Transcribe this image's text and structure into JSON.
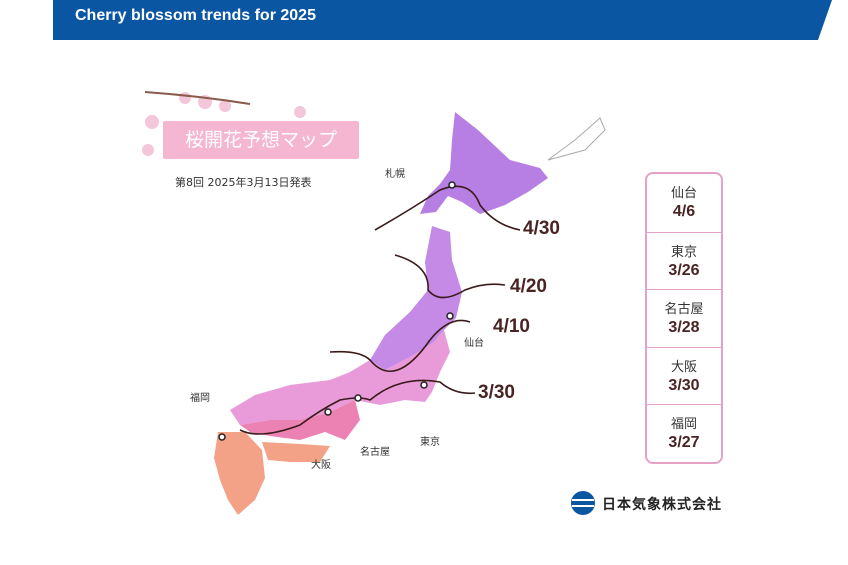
{
  "header": {
    "title": "Cherry blossom trends for 2025"
  },
  "map": {
    "title": "桜開花予想マップ",
    "subtitle": "第8回 2025年3月13日発表",
    "isolines": [
      "4/30",
      "4/20",
      "4/10",
      "3/30"
    ],
    "cities": [
      "札幌",
      "仙台",
      "東京",
      "名古屋",
      "大阪",
      "福岡"
    ]
  },
  "forecast_table": {
    "rows": [
      {
        "city": "仙台",
        "date": "4/6"
      },
      {
        "city": "東京",
        "date": "3/26"
      },
      {
        "city": "名古屋",
        "date": "3/28"
      },
      {
        "city": "大阪",
        "date": "3/30"
      },
      {
        "city": "福岡",
        "date": "3/27"
      }
    ]
  },
  "footer": {
    "company": "日本気象株式会社"
  }
}
